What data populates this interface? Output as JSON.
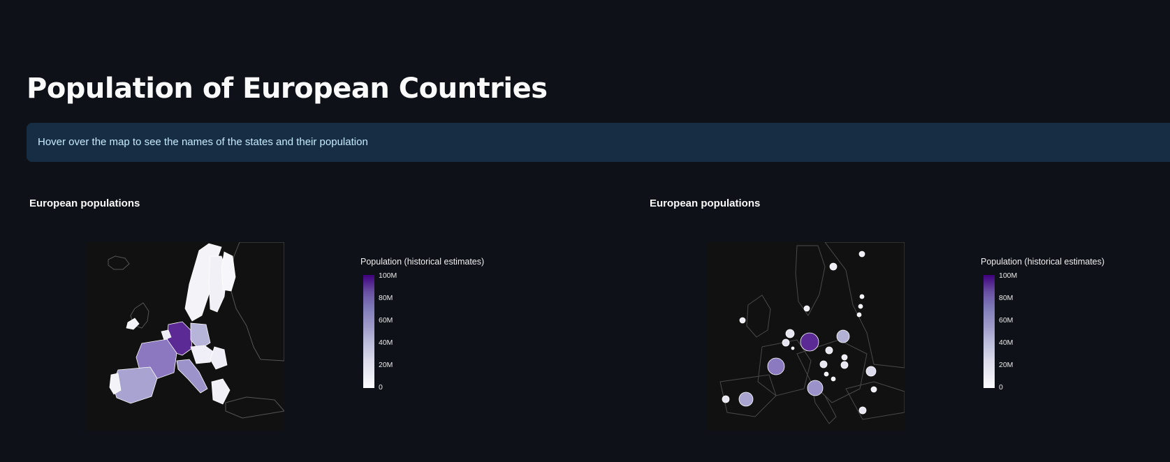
{
  "page": {
    "title": "Population of European Countries",
    "info": "Hover over the map to see the names of the states and their population"
  },
  "charts": [
    {
      "heading": "European populations",
      "colorbar": {
        "title": "Population (historical estimates)",
        "ticks": [
          "100M",
          "80M",
          "60M",
          "40M",
          "20M",
          "0"
        ]
      }
    },
    {
      "heading": "European populations",
      "colorbar": {
        "title": "Population (historical estimates)",
        "ticks": [
          "100M",
          "80M",
          "60M",
          "40M",
          "20M",
          "0"
        ]
      }
    }
  ],
  "colors": {
    "background": "#0e1117",
    "info_bg": "#172d43",
    "info_text": "#c7ebff",
    "scale_low": "#fcfbfd",
    "scale_high": "#3f007d"
  }
}
